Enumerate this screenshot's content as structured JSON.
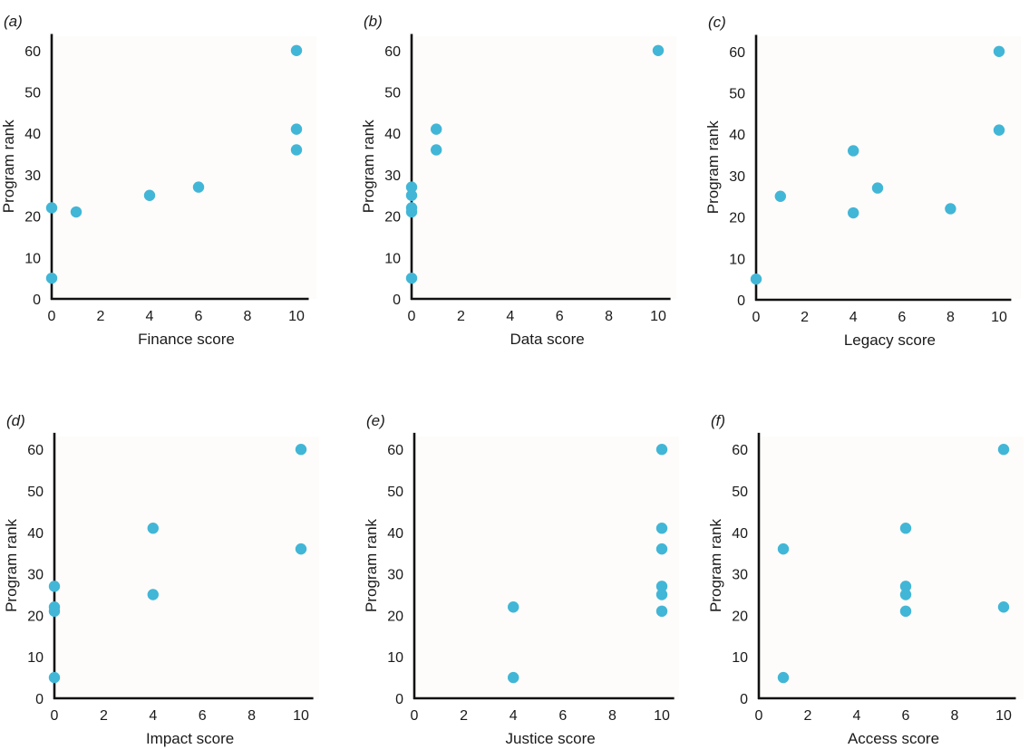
{
  "colors": {
    "point": "#42b6d6",
    "axis": "#111111",
    "panel_bg": "#fdfcfa"
  },
  "chart_data": [
    {
      "type": "scatter",
      "panel_label": "(a)",
      "xlabel": "Finance score",
      "ylabel": "Program rank",
      "xlim": [
        0,
        10.5
      ],
      "ylim": [
        0,
        64
      ],
      "xticks": [
        0,
        2,
        4,
        6,
        8,
        10
      ],
      "yticks": [
        0,
        10,
        20,
        30,
        40,
        50,
        60
      ],
      "points": [
        {
          "x": 0,
          "y": 5
        },
        {
          "x": 0,
          "y": 22
        },
        {
          "x": 1,
          "y": 21
        },
        {
          "x": 4,
          "y": 25
        },
        {
          "x": 6,
          "y": 27
        },
        {
          "x": 10,
          "y": 36
        },
        {
          "x": 10,
          "y": 41
        },
        {
          "x": 10,
          "y": 60
        }
      ]
    },
    {
      "type": "scatter",
      "panel_label": "(b)",
      "xlabel": "Data score",
      "ylabel": "Program rank",
      "xlim": [
        0,
        10.5
      ],
      "ylim": [
        0,
        64
      ],
      "xticks": [
        0,
        2,
        4,
        6,
        8,
        10
      ],
      "yticks": [
        0,
        10,
        20,
        30,
        40,
        50,
        60
      ],
      "points": [
        {
          "x": 0,
          "y": 5
        },
        {
          "x": 0,
          "y": 21
        },
        {
          "x": 0,
          "y": 22
        },
        {
          "x": 0,
          "y": 25
        },
        {
          "x": 0,
          "y": 27
        },
        {
          "x": 1,
          "y": 36
        },
        {
          "x": 1,
          "y": 41
        },
        {
          "x": 10,
          "y": 60
        }
      ]
    },
    {
      "type": "scatter",
      "panel_label": "(c)",
      "xlabel": "Legacy score",
      "ylabel": "Program rank",
      "xlim": [
        0,
        10.5
      ],
      "ylim": [
        0,
        64
      ],
      "xticks": [
        0,
        2,
        4,
        6,
        8,
        10
      ],
      "yticks": [
        0,
        10,
        20,
        30,
        40,
        50,
        60
      ],
      "points": [
        {
          "x": 0,
          "y": 5
        },
        {
          "x": 1,
          "y": 25
        },
        {
          "x": 4,
          "y": 21
        },
        {
          "x": 4,
          "y": 36
        },
        {
          "x": 5,
          "y": 27
        },
        {
          "x": 8,
          "y": 22
        },
        {
          "x": 10,
          "y": 41
        },
        {
          "x": 10,
          "y": 60
        }
      ]
    },
    {
      "type": "scatter",
      "panel_label": "(d)",
      "xlabel": "Impact score",
      "ylabel": "Program rank",
      "xlim": [
        0,
        10.5
      ],
      "ylim": [
        0,
        64
      ],
      "xticks": [
        0,
        2,
        4,
        6,
        8,
        10
      ],
      "yticks": [
        0,
        10,
        20,
        30,
        40,
        50,
        60
      ],
      "points": [
        {
          "x": 0,
          "y": 5
        },
        {
          "x": 0,
          "y": 21
        },
        {
          "x": 0,
          "y": 22
        },
        {
          "x": 0,
          "y": 27
        },
        {
          "x": 4,
          "y": 25
        },
        {
          "x": 4,
          "y": 41
        },
        {
          "x": 10,
          "y": 36
        },
        {
          "x": 10,
          "y": 60
        }
      ]
    },
    {
      "type": "scatter",
      "panel_label": "(e)",
      "xlabel": "Justice score",
      "ylabel": "Program rank",
      "xlim": [
        0,
        10.5
      ],
      "ylim": [
        0,
        64
      ],
      "xticks": [
        0,
        2,
        4,
        6,
        8,
        10
      ],
      "yticks": [
        0,
        10,
        20,
        30,
        40,
        50,
        60
      ],
      "points": [
        {
          "x": 4,
          "y": 5
        },
        {
          "x": 4,
          "y": 22
        },
        {
          "x": 10,
          "y": 21
        },
        {
          "x": 10,
          "y": 25
        },
        {
          "x": 10,
          "y": 27
        },
        {
          "x": 10,
          "y": 36
        },
        {
          "x": 10,
          "y": 41
        },
        {
          "x": 10,
          "y": 60
        }
      ]
    },
    {
      "type": "scatter",
      "panel_label": "(f)",
      "xlabel": "Access score",
      "ylabel": "Program rank",
      "xlim": [
        0,
        10.5
      ],
      "ylim": [
        0,
        64
      ],
      "xticks": [
        0,
        2,
        4,
        6,
        8,
        10
      ],
      "yticks": [
        0,
        10,
        20,
        30,
        40,
        50,
        60
      ],
      "points": [
        {
          "x": 1,
          "y": 5
        },
        {
          "x": 1,
          "y": 36
        },
        {
          "x": 6,
          "y": 21
        },
        {
          "x": 6,
          "y": 25
        },
        {
          "x": 6,
          "y": 27
        },
        {
          "x": 6,
          "y": 41
        },
        {
          "x": 10,
          "y": 22
        },
        {
          "x": 10,
          "y": 60
        }
      ]
    }
  ]
}
